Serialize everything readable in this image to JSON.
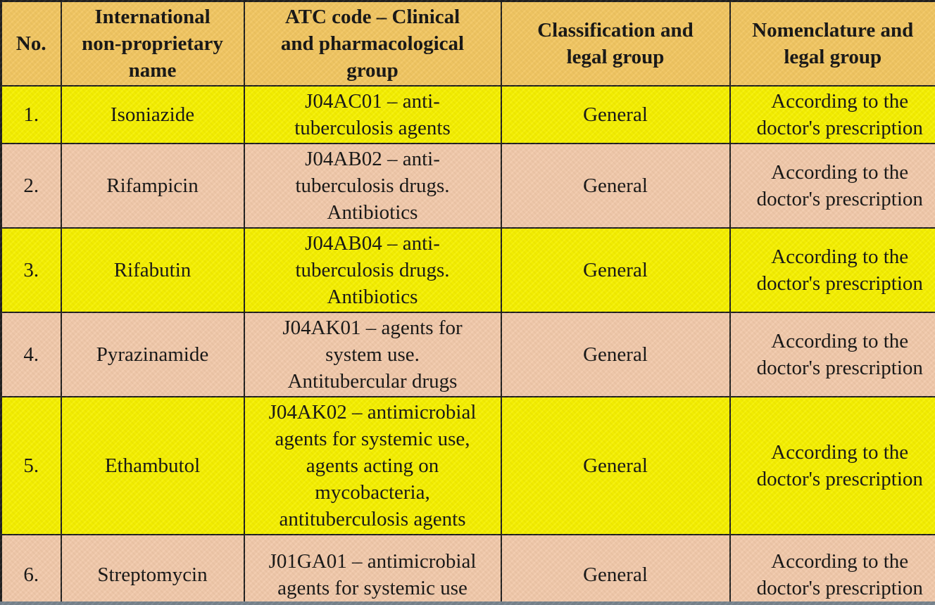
{
  "table": {
    "columns": [
      {
        "key": "no",
        "label": "No."
      },
      {
        "key": "name",
        "label": "International non-proprietary name"
      },
      {
        "key": "atc",
        "label": "ATC code – Clinical and pharmacological group"
      },
      {
        "key": "classification",
        "label": "Classification and legal group"
      },
      {
        "key": "nomenclature",
        "label": "Nomenclature and legal group"
      }
    ],
    "rows": [
      {
        "no": "1.",
        "name": "Isoniazide",
        "atc": "J04AC01 – anti-tuberculosis agents",
        "classification": "General",
        "nomenclature": "According to the doctor's prescription"
      },
      {
        "no": "2.",
        "name": "Rifampicin",
        "atc": "J04AB02 – anti-tuberculosis drugs. Antibiotics",
        "classification": "General",
        "nomenclature": "According to the doctor's prescription"
      },
      {
        "no": "3.",
        "name": "Rifabutin",
        "atc": "J04AB04 – anti-tuberculosis drugs. Antibiotics",
        "classification": "General",
        "nomenclature": "According to the doctor's prescription"
      },
      {
        "no": "4.",
        "name": "Pyrazinamide",
        "atc": "J04AK01 – agents for system use. Antitubercular drugs",
        "classification": "General",
        "nomenclature": "According to the doctor's prescription"
      },
      {
        "no": "5.",
        "name": "Ethambutol",
        "atc": "J04AK02 – antimicrobial agents for systemic use, agents acting on mycobacteria, antituberculosis agents",
        "classification": "General",
        "nomenclature": "According to the doctor's prescription"
      },
      {
        "no": "6.",
        "name": "Streptomycin",
        "atc": "J01GA01 – antimicrobial agents for systemic use",
        "classification": "General",
        "nomenclature": "According to the doctor's prescription"
      }
    ]
  },
  "colors": {
    "header-bg": "#f2c763",
    "row-yellow": "#f6f101",
    "row-salmon": "#f2caac",
    "border": "#1f1f1f",
    "text": "#141414",
    "edge-strip": "#76838e"
  }
}
